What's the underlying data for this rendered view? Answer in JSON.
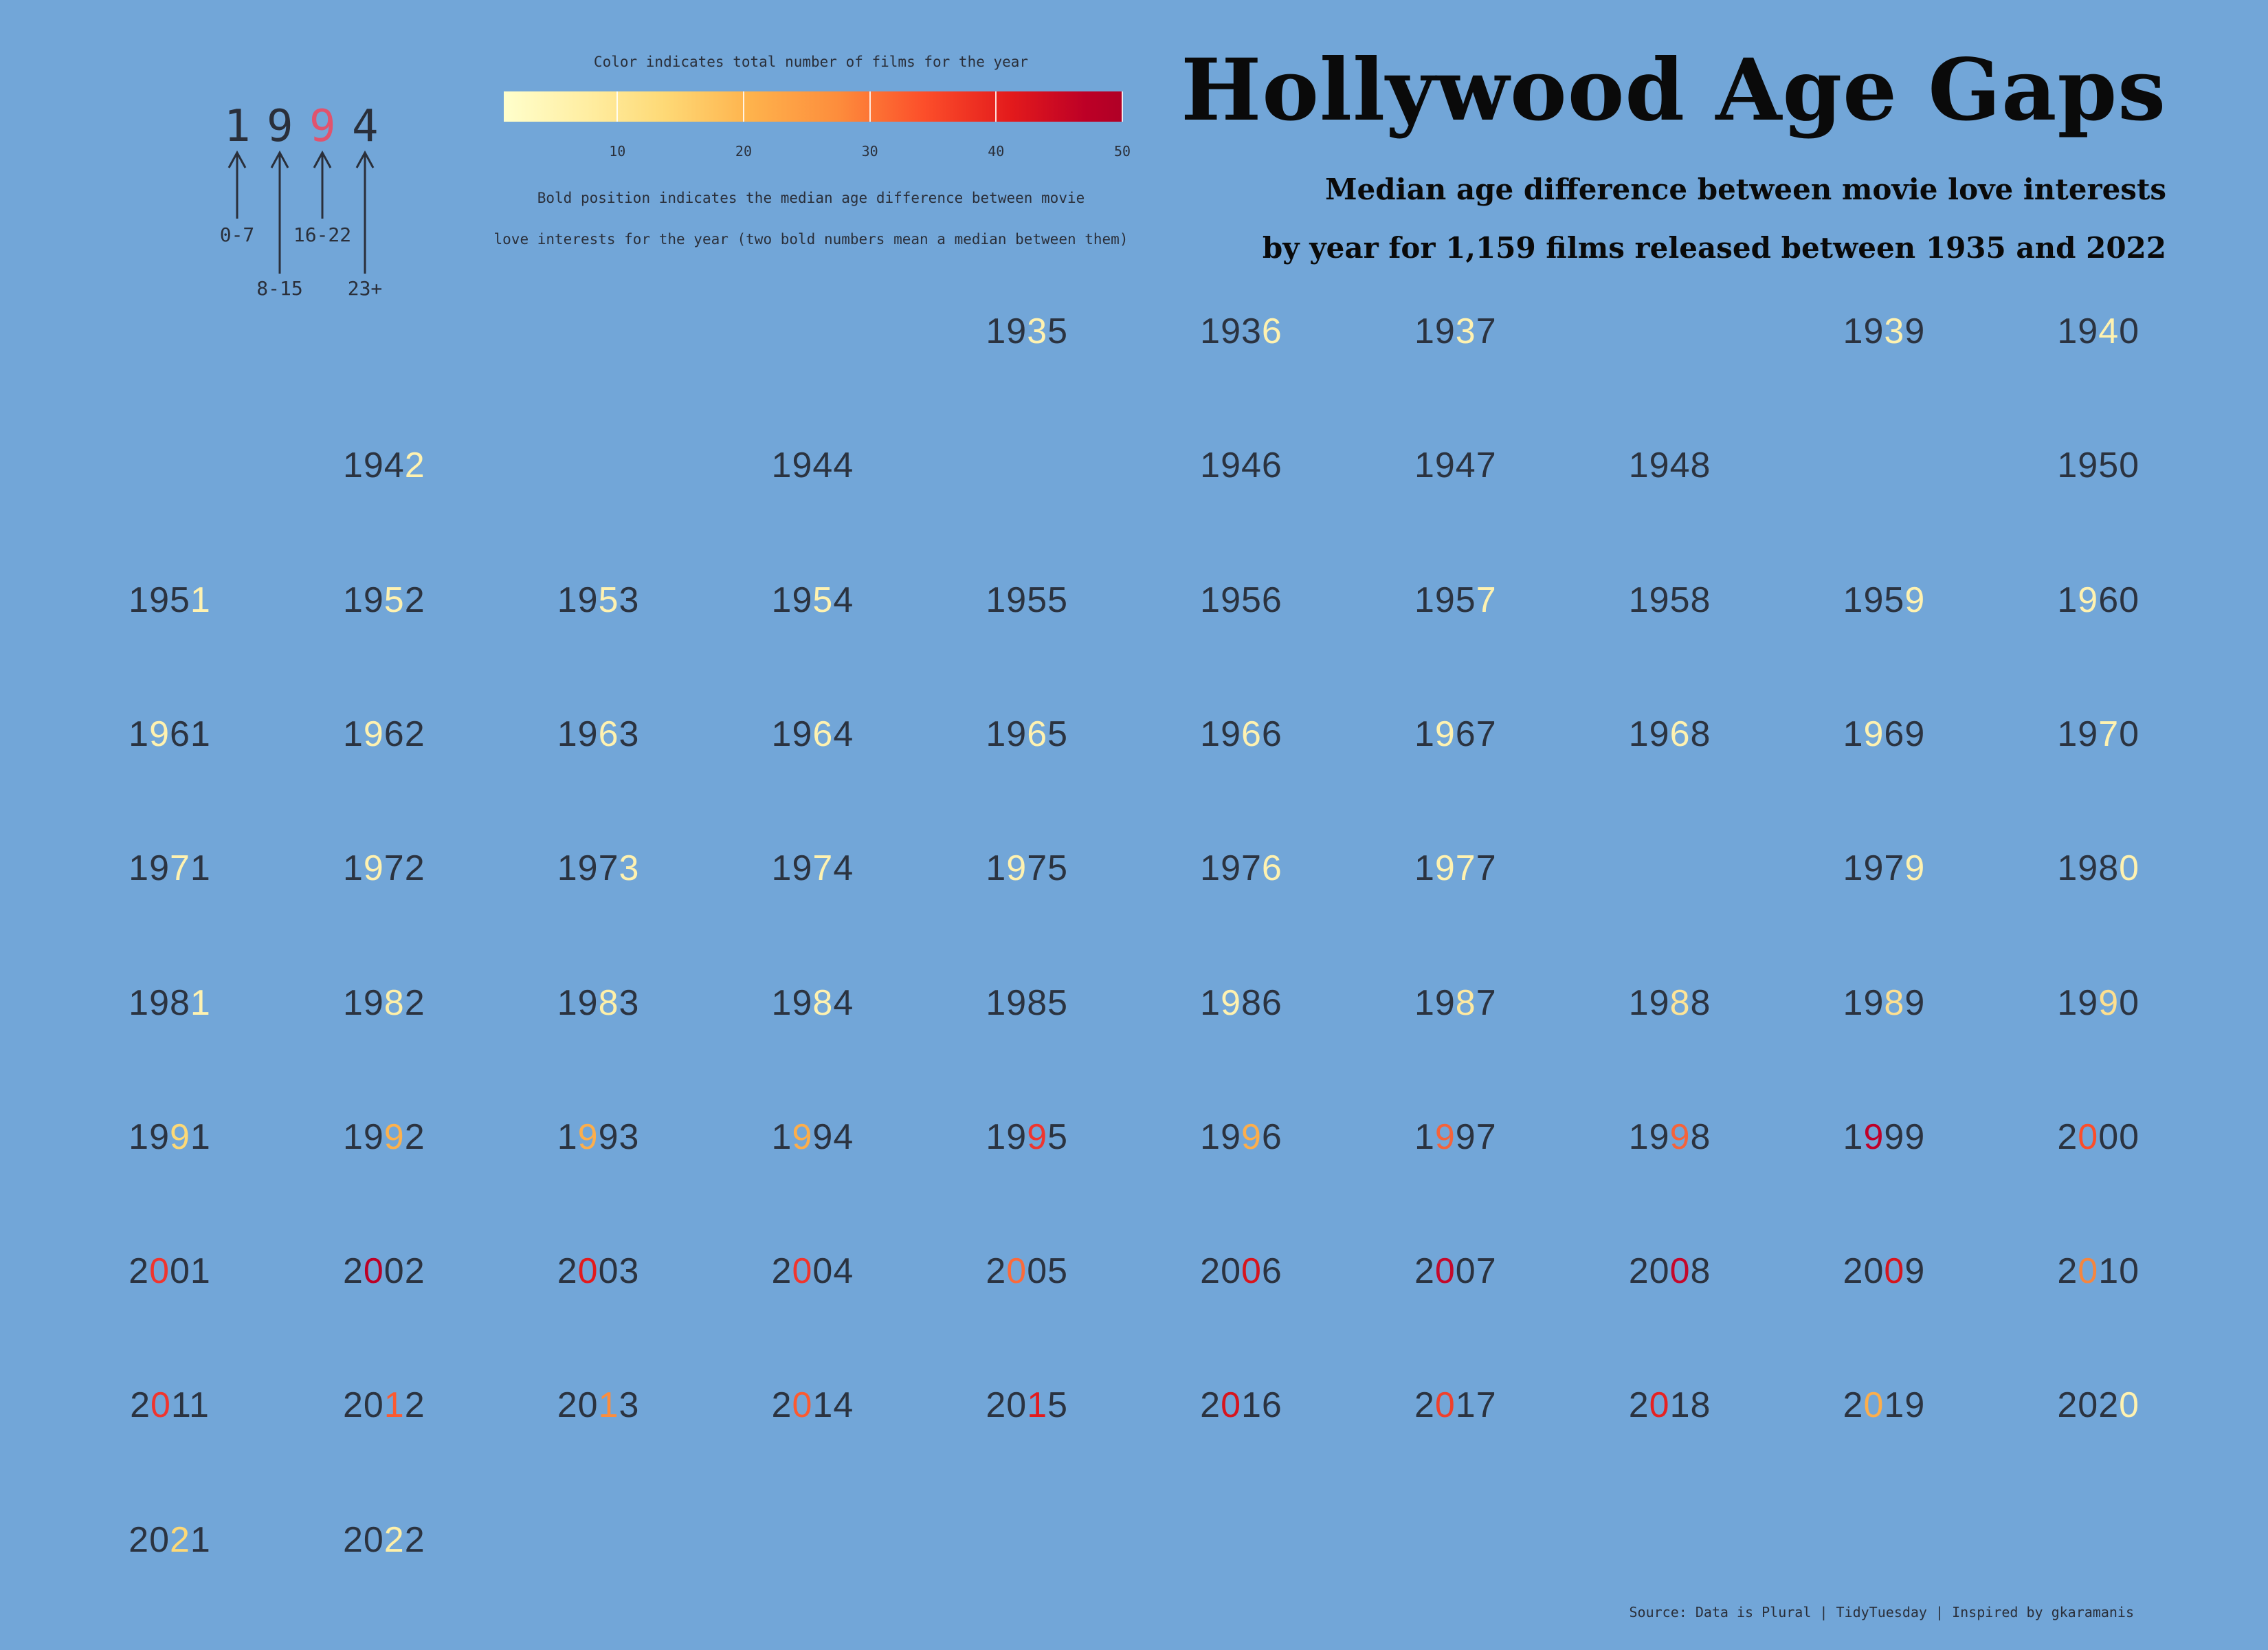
{
  "title": "Hollywood Age Gaps",
  "subtitle_line1": "Median age difference between movie love interests",
  "subtitle_line2": "by year for 1,159 films released between 1935 and 2022",
  "legend": {
    "color_caption": "Color indicates total number of films for the year",
    "position_caption_line1": "Bold position indicates the median age difference between movie",
    "position_caption_line2": "love interests for the year (two bold numbers mean a median between them)",
    "colorbar_ticks": [
      "10",
      "20",
      "30",
      "40",
      "50"
    ],
    "colorbar_range": [
      1,
      50
    ],
    "key_year": [
      "1",
      "9",
      "9",
      "4"
    ],
    "key_highlight_color": "#e0536e",
    "key_bins": [
      "0-7",
      "8-15",
      "16-22",
      "23+"
    ]
  },
  "source": "Source: Data is Plural | TidyTuesday | Inspired by gkaramanis",
  "colors": {
    "background": "#72a6d8",
    "text": "#2b3340",
    "scale": [
      "#ffffcc",
      "#ffeda0",
      "#fed976",
      "#feb24c",
      "#fd8d3c",
      "#fc4e2a",
      "#e31a1c",
      "#bd0026"
    ]
  },
  "chart_data": {
    "type": "table",
    "encoding": "Highlighted digit position = median age-difference bin (0-7, 8-15, 16-22, 23+); highlight color = number of films in the year",
    "years": [
      {
        "year": "1935",
        "highlight": [
          2
        ],
        "color": "#fff2b0"
      },
      {
        "year": "1936",
        "highlight": [
          3
        ],
        "color": "#fff2b0"
      },
      {
        "year": "1937",
        "highlight": [
          2
        ],
        "color": "#fff2b0"
      },
      {
        "year": "1939",
        "highlight": [
          2
        ],
        "color": "#fff2b0"
      },
      {
        "year": "1940",
        "highlight": [
          2
        ],
        "color": "#fff2b0"
      },
      {
        "year": "1942",
        "highlight": [
          3
        ],
        "color": "#fff2b0"
      },
      {
        "year": "1944",
        "highlight": [],
        "color": "#fff2b0"
      },
      {
        "year": "1946",
        "highlight": [],
        "color": "#fff2b0"
      },
      {
        "year": "1947",
        "highlight": [],
        "color": "#fff2b0"
      },
      {
        "year": "1948",
        "highlight": [],
        "color": "#fff2b0"
      },
      {
        "year": "1950",
        "highlight": [],
        "color": "#fff2b0"
      },
      {
        "year": "1951",
        "highlight": [
          3
        ],
        "color": "#fff2b0"
      },
      {
        "year": "1952",
        "highlight": [
          2
        ],
        "color": "#fff2b0"
      },
      {
        "year": "1953",
        "highlight": [
          2
        ],
        "color": "#fff2b0"
      },
      {
        "year": "1954",
        "highlight": [
          2
        ],
        "color": "#fff2b0"
      },
      {
        "year": "1955",
        "highlight": [],
        "color": "#fff2b0"
      },
      {
        "year": "1956",
        "highlight": [],
        "color": "#fff2b0"
      },
      {
        "year": "1957",
        "highlight": [
          3
        ],
        "color": "#fff2b0"
      },
      {
        "year": "1958",
        "highlight": [],
        "color": "#fff2b0"
      },
      {
        "year": "1959",
        "highlight": [
          3
        ],
        "color": "#fff2b0"
      },
      {
        "year": "1960",
        "highlight": [
          1
        ],
        "color": "#fff2b0"
      },
      {
        "year": "1961",
        "highlight": [
          1
        ],
        "color": "#fff2b0"
      },
      {
        "year": "1962",
        "highlight": [
          1
        ],
        "color": "#fff2b0"
      },
      {
        "year": "1963",
        "highlight": [
          2
        ],
        "color": "#fff2b0"
      },
      {
        "year": "1964",
        "highlight": [
          2
        ],
        "color": "#fff2b0"
      },
      {
        "year": "1965",
        "highlight": [
          2
        ],
        "color": "#fff2b0"
      },
      {
        "year": "1966",
        "highlight": [
          2
        ],
        "color": "#fff2b0"
      },
      {
        "year": "1967",
        "highlight": [
          1
        ],
        "color": "#fff2b0"
      },
      {
        "year": "1968",
        "highlight": [
          2
        ],
        "color": "#fff2b0"
      },
      {
        "year": "1969",
        "highlight": [
          1
        ],
        "color": "#fff2b0"
      },
      {
        "year": "1970",
        "highlight": [
          2
        ],
        "color": "#fff2b0"
      },
      {
        "year": "1971",
        "highlight": [
          2
        ],
        "color": "#fff2b0"
      },
      {
        "year": "1972",
        "highlight": [
          1
        ],
        "color": "#fff2b0"
      },
      {
        "year": "1973",
        "highlight": [
          3
        ],
        "color": "#fff2b0"
      },
      {
        "year": "1974",
        "highlight": [
          2
        ],
        "color": "#fff2b0"
      },
      {
        "year": "1975",
        "highlight": [
          1
        ],
        "color": "#fff2b0"
      },
      {
        "year": "1976",
        "highlight": [
          3
        ],
        "color": "#fff2b0"
      },
      {
        "year": "1977",
        "highlight": [
          1,
          2
        ],
        "color": "#fff2b0"
      },
      {
        "year": "1979",
        "highlight": [
          3
        ],
        "color": "#fff2b0"
      },
      {
        "year": "1980",
        "highlight": [
          3
        ],
        "color": "#fff2b0"
      },
      {
        "year": "1981",
        "highlight": [
          3
        ],
        "color": "#fff2b0"
      },
      {
        "year": "1982",
        "highlight": [
          2
        ],
        "color": "#fff0a8"
      },
      {
        "year": "1983",
        "highlight": [
          2
        ],
        "color": "#fff0a8"
      },
      {
        "year": "1984",
        "highlight": [
          2
        ],
        "color": "#fff2b0"
      },
      {
        "year": "1985",
        "highlight": [],
        "color": "#fff2b0"
      },
      {
        "year": "1986",
        "highlight": [
          1
        ],
        "color": "#fff2b0"
      },
      {
        "year": "1987",
        "highlight": [
          2
        ],
        "color": "#ffeaa0"
      },
      {
        "year": "1988",
        "highlight": [
          2
        ],
        "color": "#fee597"
      },
      {
        "year": "1989",
        "highlight": [
          2
        ],
        "color": "#fee090"
      },
      {
        "year": "1990",
        "highlight": [
          2
        ],
        "color": "#fee090"
      },
      {
        "year": "1991",
        "highlight": [
          2
        ],
        "color": "#fed976"
      },
      {
        "year": "1992",
        "highlight": [
          2
        ],
        "color": "#fdb14c"
      },
      {
        "year": "1993",
        "highlight": [
          1
        ],
        "color": "#fdae4b"
      },
      {
        "year": "1994",
        "highlight": [
          1
        ],
        "color": "#fdae4b"
      },
      {
        "year": "1995",
        "highlight": [
          2
        ],
        "color": "#f0352e"
      },
      {
        "year": "1996",
        "highlight": [
          2
        ],
        "color": "#fdae4b"
      },
      {
        "year": "1997",
        "highlight": [
          1
        ],
        "color": "#f5633a"
      },
      {
        "year": "1998",
        "highlight": [
          2
        ],
        "color": "#f5633a"
      },
      {
        "year": "1999",
        "highlight": [
          1
        ],
        "color": "#c00028"
      },
      {
        "year": "2000",
        "highlight": [
          1
        ],
        "color": "#fc4e2a"
      },
      {
        "year": "2001",
        "highlight": [
          1
        ],
        "color": "#f0352e"
      },
      {
        "year": "2002",
        "highlight": [
          1
        ],
        "color": "#bd0026"
      },
      {
        "year": "2003",
        "highlight": [
          1
        ],
        "color": "#e31a1c"
      },
      {
        "year": "2004",
        "highlight": [
          1
        ],
        "color": "#f0352e"
      },
      {
        "year": "2005",
        "highlight": [
          1
        ],
        "color": "#fc6a3a"
      },
      {
        "year": "2006",
        "highlight": [
          2
        ],
        "color": "#d7151d"
      },
      {
        "year": "2007",
        "highlight": [
          1
        ],
        "color": "#c5082a"
      },
      {
        "year": "2008",
        "highlight": [
          2
        ],
        "color": "#c5082a"
      },
      {
        "year": "2009",
        "highlight": [
          2
        ],
        "color": "#d7151d"
      },
      {
        "year": "2010",
        "highlight": [
          1
        ],
        "color": "#f5863f"
      },
      {
        "year": "2011",
        "highlight": [
          1
        ],
        "color": "#f0352e"
      },
      {
        "year": "2012",
        "highlight": [
          2
        ],
        "color": "#fc5a30"
      },
      {
        "year": "2013",
        "highlight": [
          2
        ],
        "color": "#fd8d3c"
      },
      {
        "year": "2014",
        "highlight": [
          1
        ],
        "color": "#fc5a30"
      },
      {
        "year": "2015",
        "highlight": [
          2
        ],
        "color": "#e31a1c"
      },
      {
        "year": "2016",
        "highlight": [
          1
        ],
        "color": "#d7151d"
      },
      {
        "year": "2017",
        "highlight": [
          1
        ],
        "color": "#f0402c"
      },
      {
        "year": "2018",
        "highlight": [
          1
        ],
        "color": "#e62222"
      },
      {
        "year": "2019",
        "highlight": [
          1
        ],
        "color": "#fdae4b"
      },
      {
        "year": "2020",
        "highlight": [
          3
        ],
        "color": "#fff2b0"
      },
      {
        "year": "2021",
        "highlight": [
          2
        ],
        "color": "#fed976"
      },
      {
        "year": "2022",
        "highlight": [
          2
        ],
        "color": "#fff0a8"
      }
    ]
  }
}
